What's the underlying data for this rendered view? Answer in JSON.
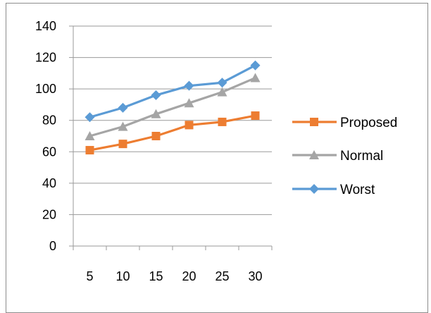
{
  "chart_data": {
    "type": "line",
    "categories": [
      "5",
      "10",
      "15",
      "20",
      "25",
      "30"
    ],
    "ylim": [
      0,
      140
    ],
    "yticks": [
      0,
      20,
      40,
      60,
      80,
      100,
      120,
      140
    ],
    "grid": true,
    "legend_position": "right",
    "series": [
      {
        "name": "Proposed",
        "color": "#ed7d31",
        "marker": "square",
        "values": [
          61,
          65,
          70,
          77,
          79,
          83
        ]
      },
      {
        "name": "Normal",
        "color": "#a5a5a5",
        "marker": "triangle",
        "values": [
          70,
          76,
          84,
          91,
          98,
          107
        ]
      },
      {
        "name": "Worst",
        "color": "#5b9bd5",
        "marker": "diamond",
        "values": [
          82,
          88,
          96,
          102,
          104,
          115
        ]
      }
    ]
  }
}
